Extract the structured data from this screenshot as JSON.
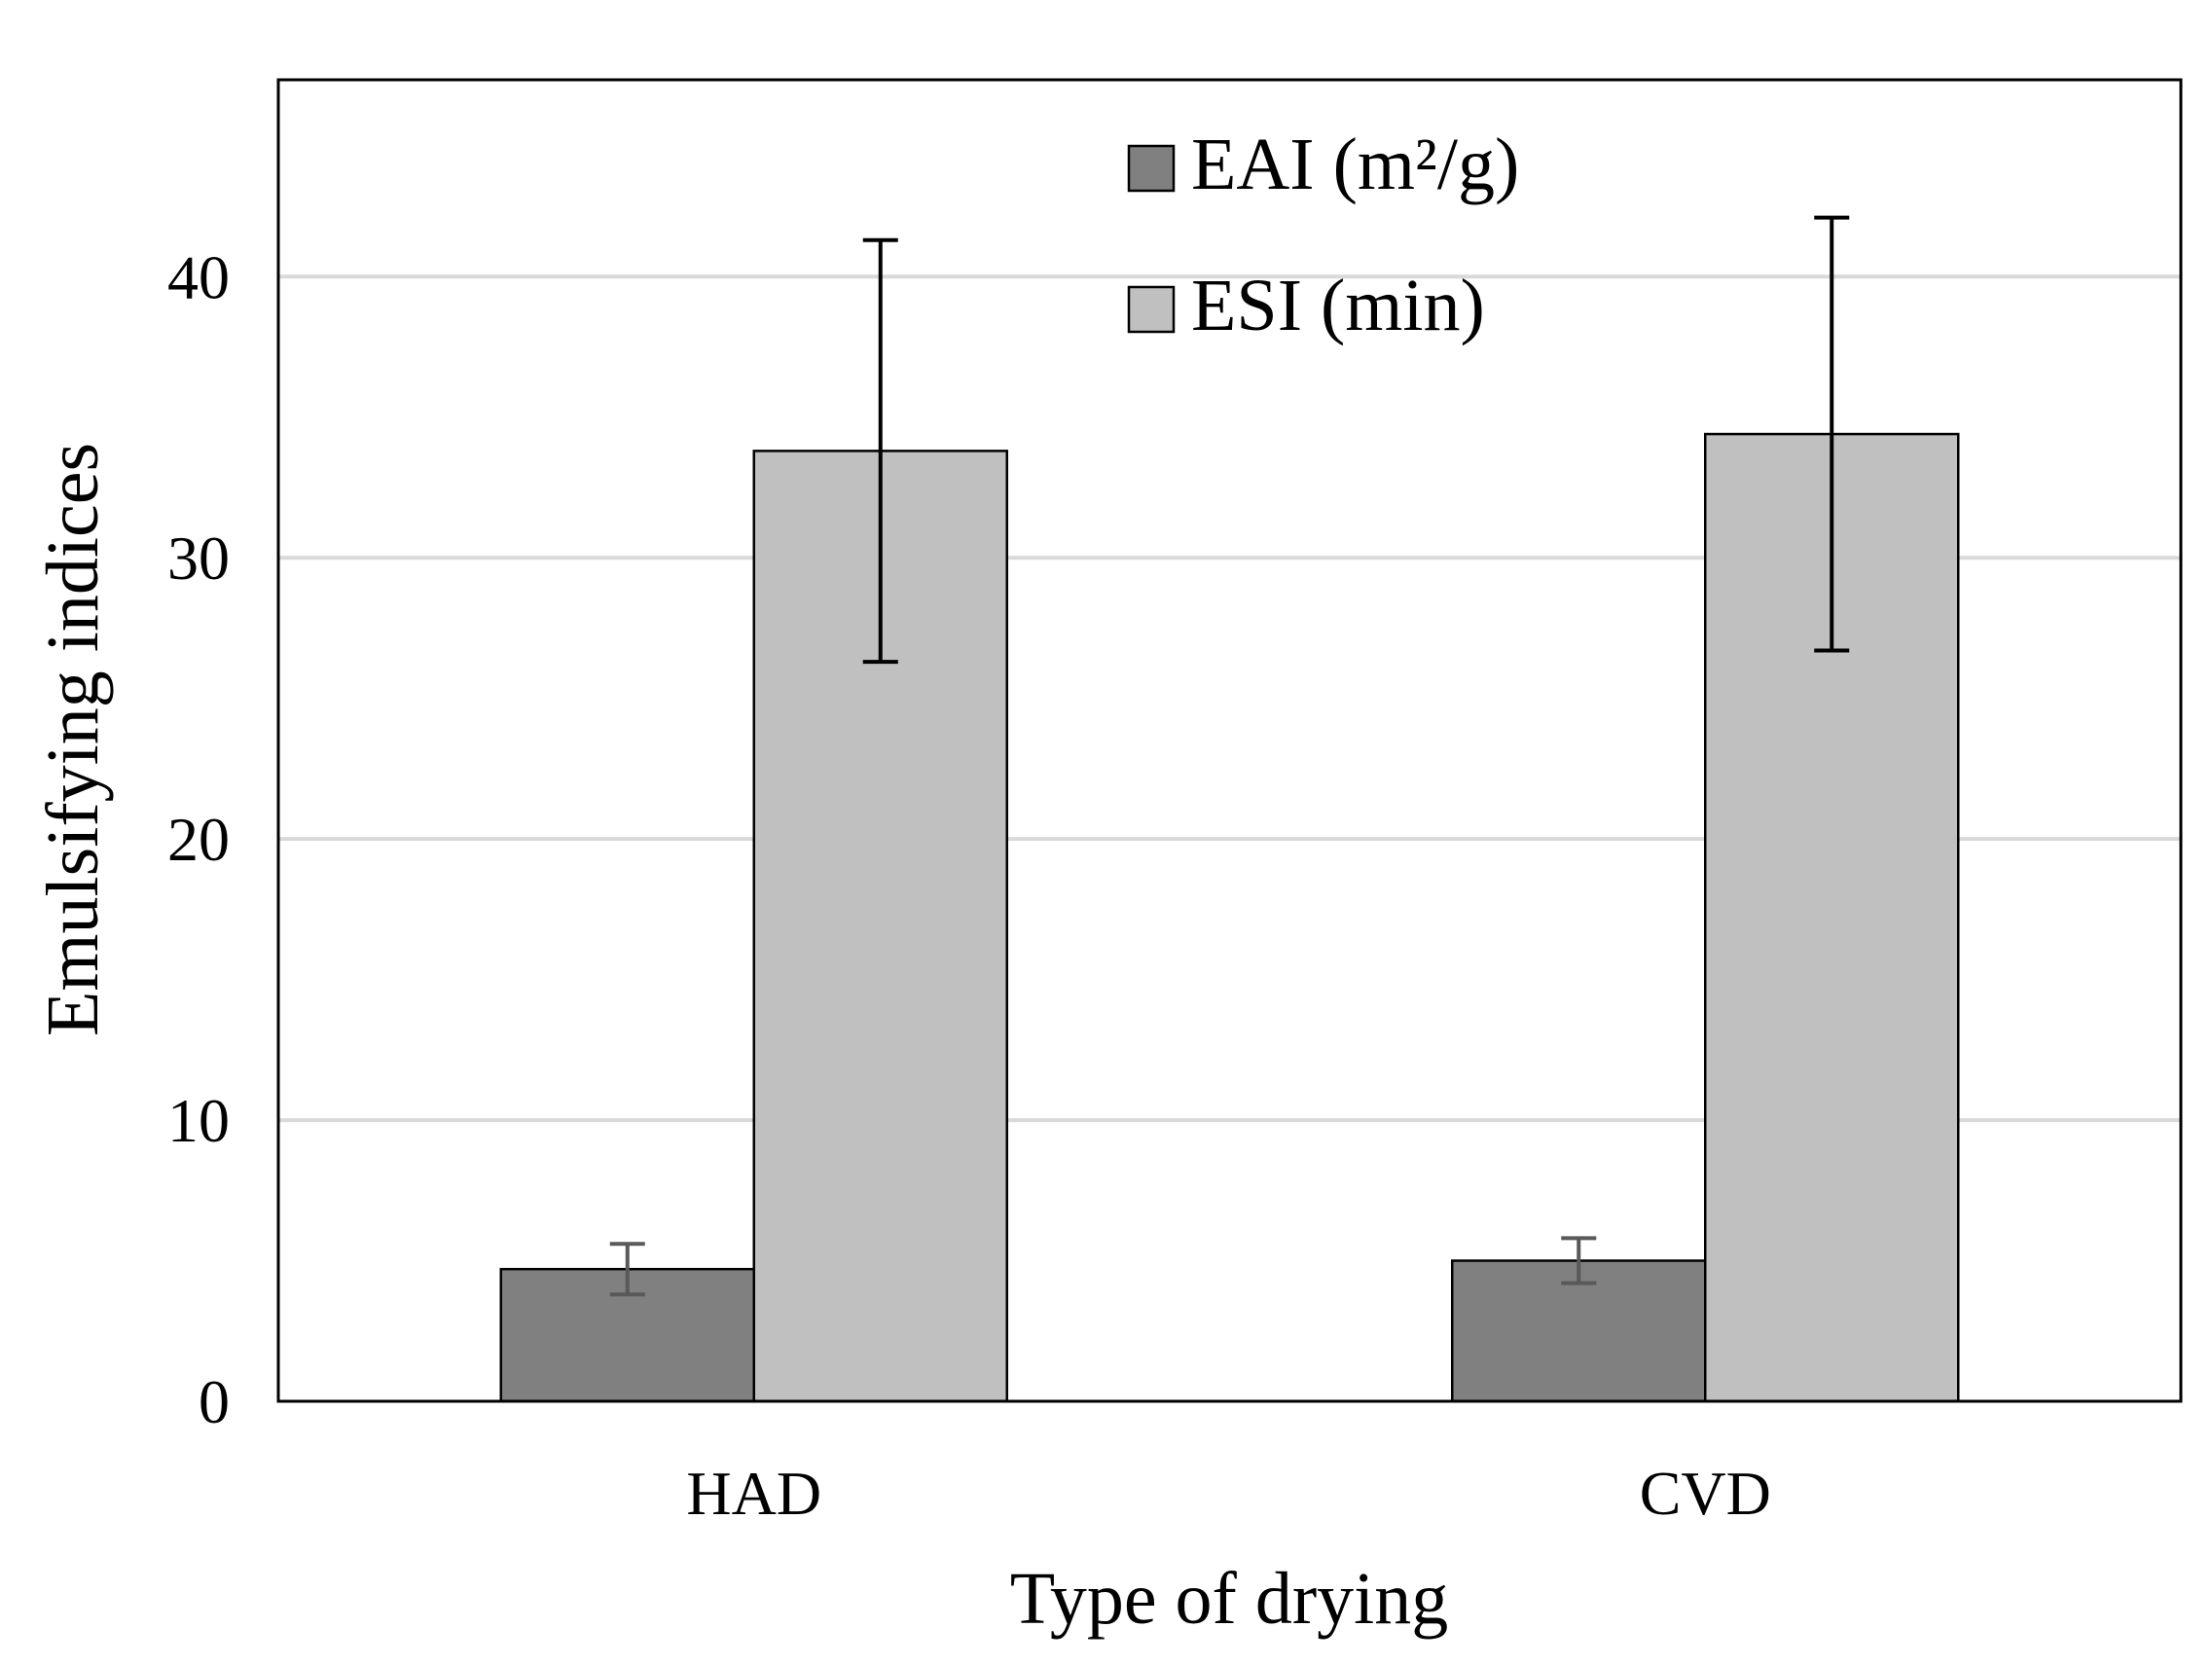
{
  "chart_data": {
    "type": "bar",
    "xlabel": "Type of drying",
    "ylabel": "Emulsifying indices",
    "categories": [
      "HAD",
      "CVD"
    ],
    "ylim": [
      0,
      47
    ],
    "yticks": [
      0,
      10,
      20,
      30,
      40
    ],
    "grid": true,
    "legend_position": "top-center",
    "series": [
      {
        "name": "EAI (m²/g)",
        "color": "#808080",
        "errorbar_color": "#595959",
        "values": [
          4.7,
          5.0
        ],
        "errors": [
          0.9,
          0.8
        ]
      },
      {
        "name": "ESI (min)",
        "color": "#c0c0c0",
        "errorbar_color": "#000000",
        "values": [
          33.8,
          34.4
        ],
        "errors": [
          7.5,
          7.7
        ]
      }
    ]
  }
}
